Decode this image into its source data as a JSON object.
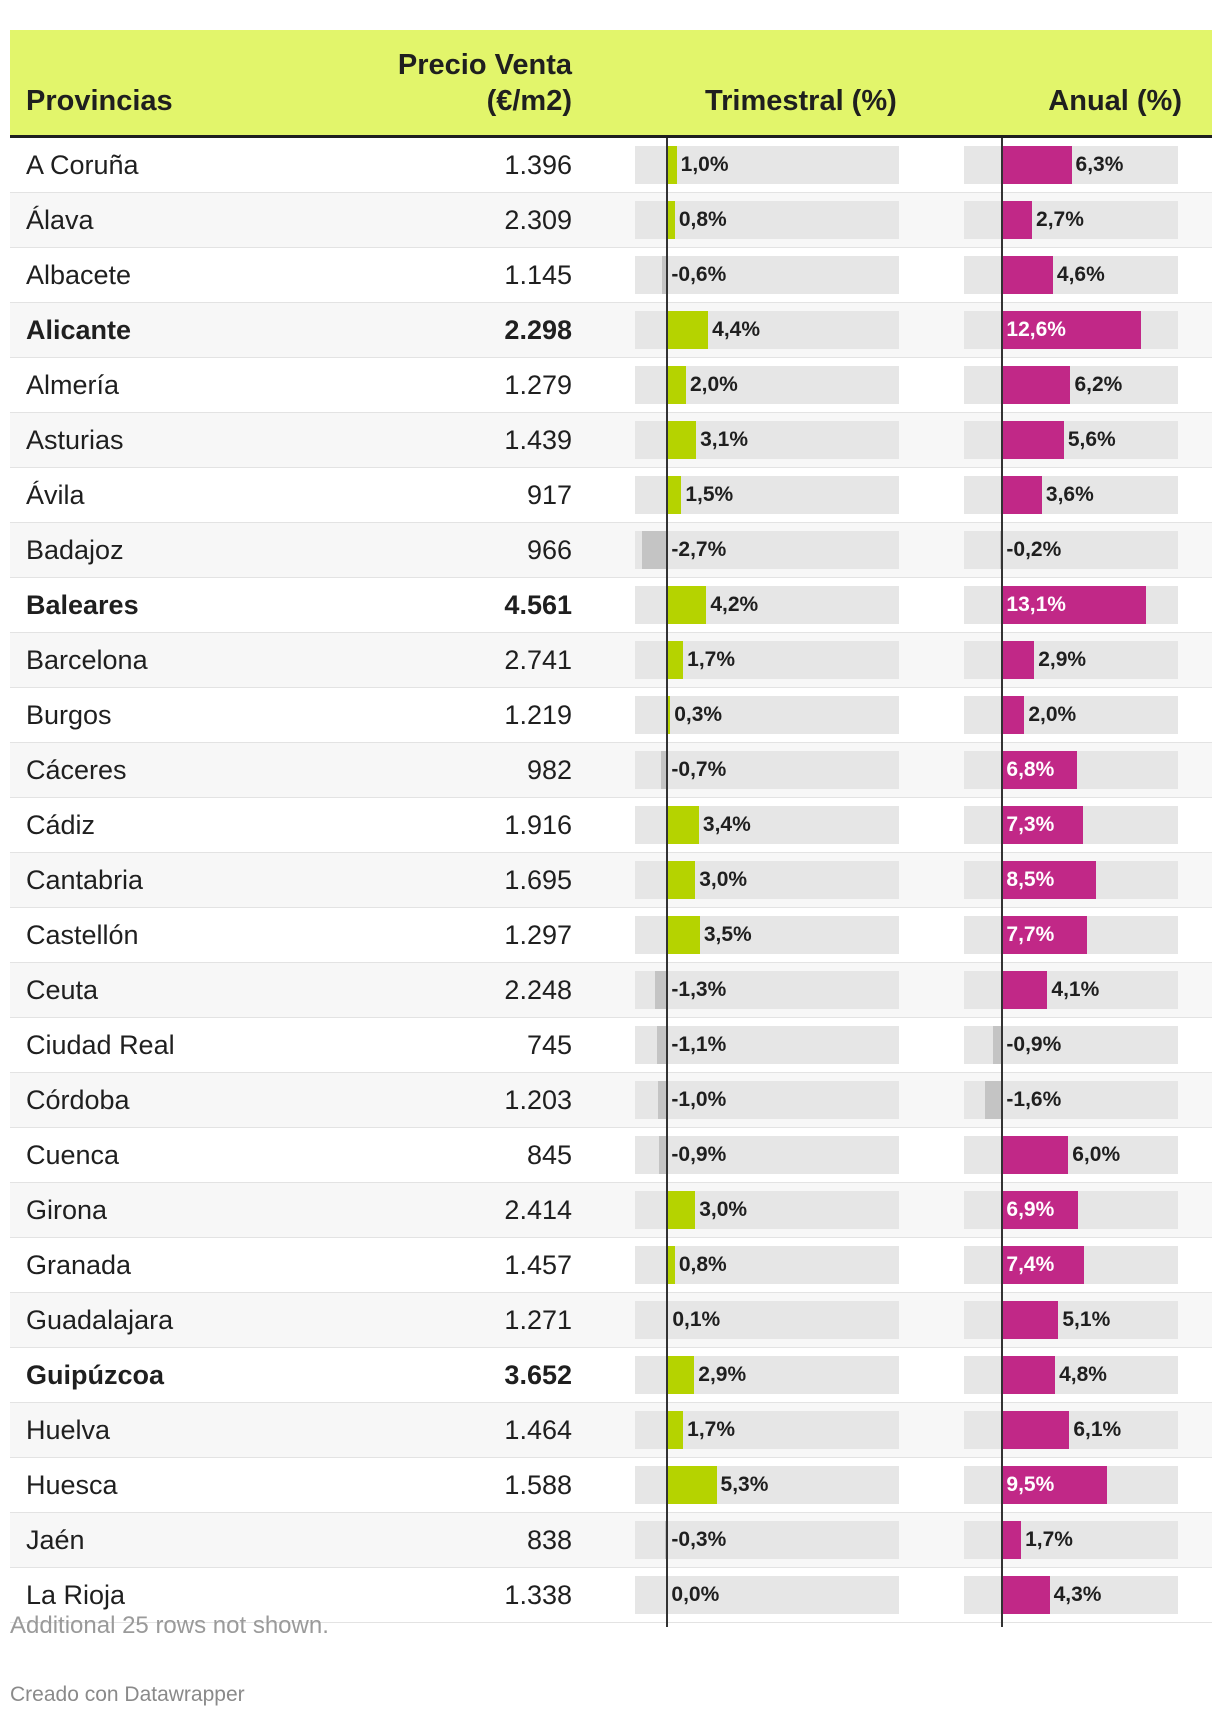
{
  "chart_data": {
    "type": "table",
    "columns": [
      "Provincias",
      "Precio Venta\n(€/m2)",
      "Trimestral (%)",
      "Anual (%)"
    ],
    "header": {
      "provincias": "Provincias",
      "precio_line1": "Precio Venta",
      "precio_line2": "(€/m2)",
      "trimestral": "Trimestral (%)",
      "anual": "Anual (%)"
    },
    "scale": {
      "trimestral_min": -3.5,
      "trimestral_max": 25,
      "anual_min": -3.5,
      "anual_max": 16
    },
    "rows": [
      {
        "province": "A Coruña",
        "price": "1.396",
        "trimestral": 1.0,
        "trimestral_label": "1,0%",
        "anual": 6.3,
        "anual_label": "6,3%",
        "bold": false
      },
      {
        "province": "Álava",
        "price": "2.309",
        "trimestral": 0.8,
        "trimestral_label": "0,8%",
        "anual": 2.7,
        "anual_label": "2,7%",
        "bold": false
      },
      {
        "province": "Albacete",
        "price": "1.145",
        "trimestral": -0.6,
        "trimestral_label": "-0,6%",
        "anual": 4.6,
        "anual_label": "4,6%",
        "bold": false
      },
      {
        "province": "Alicante",
        "price": "2.298",
        "trimestral": 4.4,
        "trimestral_label": "4,4%",
        "anual": 12.6,
        "anual_label": "12,6%",
        "bold": true
      },
      {
        "province": "Almería",
        "price": "1.279",
        "trimestral": 2.0,
        "trimestral_label": "2,0%",
        "anual": 6.2,
        "anual_label": "6,2%",
        "bold": false
      },
      {
        "province": "Asturias",
        "price": "1.439",
        "trimestral": 3.1,
        "trimestral_label": "3,1%",
        "anual": 5.6,
        "anual_label": "5,6%",
        "bold": false
      },
      {
        "province": "Ávila",
        "price": "917",
        "trimestral": 1.5,
        "trimestral_label": "1,5%",
        "anual": 3.6,
        "anual_label": "3,6%",
        "bold": false
      },
      {
        "province": "Badajoz",
        "price": "966",
        "trimestral": -2.7,
        "trimestral_label": "-2,7%",
        "anual": -0.2,
        "anual_label": "-0,2%",
        "bold": false
      },
      {
        "province": "Baleares",
        "price": "4.561",
        "trimestral": 4.2,
        "trimestral_label": "4,2%",
        "anual": 13.1,
        "anual_label": "13,1%",
        "bold": true
      },
      {
        "province": "Barcelona",
        "price": "2.741",
        "trimestral": 1.7,
        "trimestral_label": "1,7%",
        "anual": 2.9,
        "anual_label": "2,9%",
        "bold": false
      },
      {
        "province": "Burgos",
        "price": "1.219",
        "trimestral": 0.3,
        "trimestral_label": "0,3%",
        "anual": 2.0,
        "anual_label": "2,0%",
        "bold": false
      },
      {
        "province": "Cáceres",
        "price": "982",
        "trimestral": -0.7,
        "trimestral_label": "-0,7%",
        "anual": 6.8,
        "anual_label": "6,8%",
        "bold": false
      },
      {
        "province": "Cádiz",
        "price": "1.916",
        "trimestral": 3.4,
        "trimestral_label": "3,4%",
        "anual": 7.3,
        "anual_label": "7,3%",
        "bold": false
      },
      {
        "province": "Cantabria",
        "price": "1.695",
        "trimestral": 3.0,
        "trimestral_label": "3,0%",
        "anual": 8.5,
        "anual_label": "8,5%",
        "bold": false
      },
      {
        "province": "Castellón",
        "price": "1.297",
        "trimestral": 3.5,
        "trimestral_label": "3,5%",
        "anual": 7.7,
        "anual_label": "7,7%",
        "bold": false
      },
      {
        "province": "Ceuta",
        "price": "2.248",
        "trimestral": -1.3,
        "trimestral_label": "-1,3%",
        "anual": 4.1,
        "anual_label": "4,1%",
        "bold": false
      },
      {
        "province": "Ciudad Real",
        "price": "745",
        "trimestral": -1.1,
        "trimestral_label": "-1,1%",
        "anual": -0.9,
        "anual_label": "-0,9%",
        "bold": false
      },
      {
        "province": "Córdoba",
        "price": "1.203",
        "trimestral": -1.0,
        "trimestral_label": "-1,0%",
        "anual": -1.6,
        "anual_label": "-1,6%",
        "bold": false
      },
      {
        "province": "Cuenca",
        "price": "845",
        "trimestral": -0.9,
        "trimestral_label": "-0,9%",
        "anual": 6.0,
        "anual_label": "6,0%",
        "bold": false
      },
      {
        "province": "Girona",
        "price": "2.414",
        "trimestral": 3.0,
        "trimestral_label": "3,0%",
        "anual": 6.9,
        "anual_label": "6,9%",
        "bold": false
      },
      {
        "province": "Granada",
        "price": "1.457",
        "trimestral": 0.8,
        "trimestral_label": "0,8%",
        "anual": 7.4,
        "anual_label": "7,4%",
        "bold": false
      },
      {
        "province": "Guadalajara",
        "price": "1.271",
        "trimestral": 0.1,
        "trimestral_label": "0,1%",
        "anual": 5.1,
        "anual_label": "5,1%",
        "bold": false
      },
      {
        "province": "Guipúzcoa",
        "price": "3.652",
        "trimestral": 2.9,
        "trimestral_label": "2,9%",
        "anual": 4.8,
        "anual_label": "4,8%",
        "bold": true
      },
      {
        "province": "Huelva",
        "price": "1.464",
        "trimestral": 1.7,
        "trimestral_label": "1,7%",
        "anual": 6.1,
        "anual_label": "6,1%",
        "bold": false
      },
      {
        "province": "Huesca",
        "price": "1.588",
        "trimestral": 5.3,
        "trimestral_label": "5,3%",
        "anual": 9.5,
        "anual_label": "9,5%",
        "bold": false
      },
      {
        "province": "Jaén",
        "price": "838",
        "trimestral": -0.3,
        "trimestral_label": "-0,3%",
        "anual": 1.7,
        "anual_label": "1,7%",
        "bold": false
      },
      {
        "province": "La Rioja",
        "price": "1.338",
        "trimestral": 0.0,
        "trimestral_label": "0,0%",
        "anual": 4.3,
        "anual_label": "4,3%",
        "bold": false
      }
    ],
    "colors": {
      "header_bg": "#e2f56b",
      "trimestral_pos": "#b5d300",
      "anual_pos": "#c12887",
      "negative": "#c4c4c4",
      "bar_bg": "#e6e6e6"
    }
  },
  "footer": {
    "note": "Additional 25 rows not shown.",
    "credit": "Creado con Datawrapper"
  }
}
